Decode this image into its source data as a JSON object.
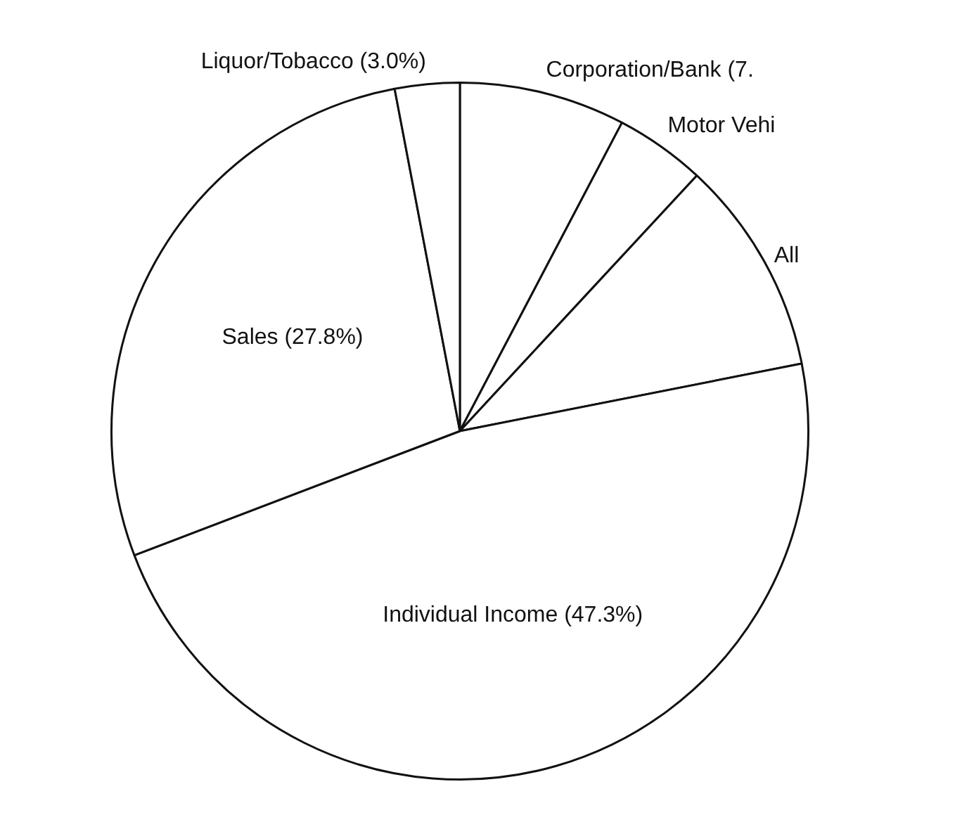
{
  "chart_data": {
    "type": "pie",
    "categories": [
      "Corporation/Bank (7.",
      "Motor Vehi",
      "All",
      "Individual Income (47.3%)",
      "Sales (27.8%)",
      "Liquor/Tobacco (3.0%)"
    ],
    "values": [
      7.7,
      4.2,
      10.0,
      47.3,
      27.8,
      3.0
    ],
    "colors": [
      "#ffffff",
      "#ffffff",
      "#ffffff",
      "#ffffff",
      "#ffffff",
      "#ffffff"
    ],
    "legend": false
  }
}
